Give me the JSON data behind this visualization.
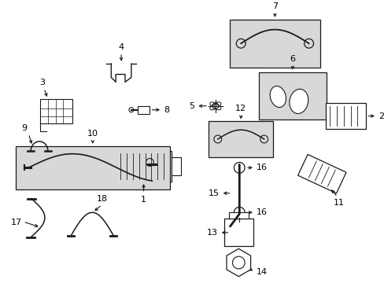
{
  "bg_color": "#ffffff",
  "line_color": "#1a1a1a",
  "box_bg": "#d8d8d8",
  "figw": 4.89,
  "figh": 3.6,
  "dpi": 100
}
